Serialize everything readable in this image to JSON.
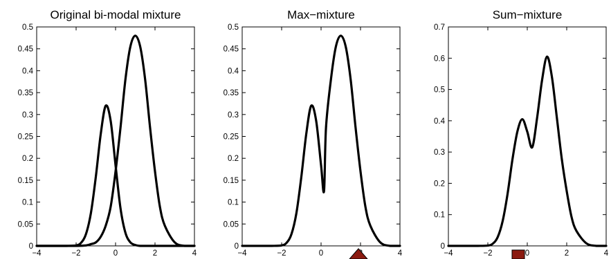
{
  "chart_data": [
    {
      "type": "line",
      "title": "Original bi-modal mixture",
      "xlabel": "",
      "ylabel": "",
      "xlim": [
        -4,
        4
      ],
      "ylim": [
        0,
        0.5
      ],
      "xticks": [
        -4,
        -2,
        0,
        2,
        4
      ],
      "xtick_labels": [
        "−4",
        "−2",
        "0",
        "2",
        "4"
      ],
      "yticks": [
        0,
        0.05,
        0.1,
        0.15,
        0.2,
        0.25,
        0.3,
        0.35,
        0.4,
        0.45,
        0.5
      ],
      "ytick_labels": [
        "0",
        "0.05",
        "0.1",
        "0.15",
        "0.2",
        "0.25",
        "0.3",
        "0.35",
        "0.4",
        "0.45",
        "0.5"
      ],
      "grid": false,
      "series": [
        {
          "x": [
            -4,
            -3.5,
            -3,
            -2.5,
            -2,
            -1.75,
            -1.5,
            -1.25,
            -1,
            -0.75,
            -0.5,
            -0.25,
            0,
            0.25,
            0.5,
            0.75,
            1,
            1.25,
            1.5,
            2,
            2.5,
            3,
            3.5,
            4
          ],
          "y": [
            0,
            0,
            0,
            0,
            0.001,
            0.007,
            0.027,
            0.075,
            0.158,
            0.256,
            0.32,
            0.286,
            0.184,
            0.086,
            0.03,
            0.008,
            0.002,
            0,
            0,
            0,
            0,
            0,
            0,
            0
          ]
        },
        {
          "x": [
            -4,
            -3.5,
            -3,
            -2.5,
            -2,
            -1.5,
            -1.25,
            -1,
            -0.75,
            -0.5,
            -0.25,
            0,
            0.25,
            0.5,
            0.75,
            1,
            1.25,
            1.5,
            1.75,
            2,
            2.25,
            2.5,
            3,
            3.5,
            4
          ],
          "y": [
            0,
            0,
            0,
            0,
            0,
            0.001,
            0.004,
            0.008,
            0.021,
            0.046,
            0.089,
            0.17,
            0.27,
            0.38,
            0.455,
            0.48,
            0.455,
            0.38,
            0.27,
            0.17,
            0.089,
            0.046,
            0.008,
            0,
            0
          ]
        }
      ]
    },
    {
      "type": "line",
      "title": "Max−mixture",
      "xlabel": "",
      "ylabel": "",
      "xlim": [
        -4,
        4
      ],
      "ylim": [
        0,
        0.5
      ],
      "xticks": [
        -4,
        -2,
        0,
        2,
        4
      ],
      "xtick_labels": [
        "−4",
        "−2",
        "0",
        "2",
        "4"
      ],
      "yticks": [
        0,
        0.05,
        0.1,
        0.15,
        0.2,
        0.25,
        0.3,
        0.35,
        0.4,
        0.45,
        0.5
      ],
      "ytick_labels": [
        "0",
        "0.05",
        "0.1",
        "0.15",
        "0.2",
        "0.25",
        "0.3",
        "0.35",
        "0.4",
        "0.45",
        "0.5"
      ],
      "grid": false,
      "series": [
        {
          "x": [
            -4,
            -3.5,
            -3,
            -2.5,
            -2,
            -1.75,
            -1.5,
            -1.25,
            -1,
            -0.75,
            -0.5,
            -0.25,
            0,
            0.15,
            0.25,
            0.5,
            0.75,
            1,
            1.25,
            1.5,
            1.75,
            2,
            2.25,
            2.5,
            3,
            3.5,
            4
          ],
          "y": [
            0,
            0,
            0,
            0,
            0.001,
            0.007,
            0.027,
            0.075,
            0.158,
            0.256,
            0.32,
            0.286,
            0.184,
            0.125,
            0.27,
            0.38,
            0.455,
            0.48,
            0.455,
            0.38,
            0.27,
            0.17,
            0.089,
            0.046,
            0.008,
            0,
            0
          ]
        }
      ]
    },
    {
      "type": "line",
      "title": "Sum−mixture",
      "xlabel": "",
      "ylabel": "",
      "xlim": [
        -4,
        4
      ],
      "ylim": [
        0,
        0.7
      ],
      "xticks": [
        -4,
        -2,
        0,
        2,
        4
      ],
      "xtick_labels": [
        "−4",
        "−2",
        "0",
        "2",
        "4"
      ],
      "yticks": [
        0,
        0.1,
        0.2,
        0.3,
        0.4,
        0.5,
        0.6,
        0.7
      ],
      "ytick_labels": [
        "0",
        "0.1",
        "0.2",
        "0.3",
        "0.4",
        "0.5",
        "0.6",
        "0.7"
      ],
      "grid": false,
      "series": [
        {
          "x": [
            -4,
            -3.5,
            -3,
            -2.5,
            -2,
            -1.75,
            -1.5,
            -1.25,
            -1,
            -0.75,
            -0.5,
            -0.25,
            0,
            0.25,
            0.5,
            0.75,
            1,
            1.25,
            1.5,
            1.75,
            2,
            2.25,
            2.5,
            3,
            3.5,
            4
          ],
          "y": [
            0,
            0,
            0,
            0,
            0.001,
            0.007,
            0.028,
            0.079,
            0.166,
            0.277,
            0.366,
            0.405,
            0.365,
            0.315,
            0.41,
            0.53,
            0.605,
            0.54,
            0.41,
            0.278,
            0.175,
            0.091,
            0.047,
            0.008,
            0,
            0
          ]
        }
      ]
    }
  ]
}
